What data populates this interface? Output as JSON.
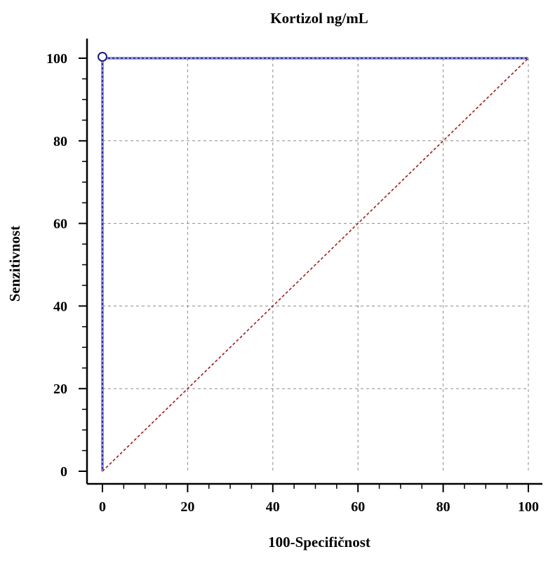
{
  "chart_data": {
    "type": "line",
    "title": "Kortizol ng/mL",
    "xlabel": "100-Specifičnost",
    "ylabel": "Senzitivnost",
    "xlim": [
      0,
      100
    ],
    "ylim": [
      0,
      100
    ],
    "xticks": [
      0,
      20,
      40,
      60,
      80,
      100
    ],
    "yticks": [
      0,
      20,
      40,
      60,
      80,
      100
    ],
    "grid": true,
    "series": [
      {
        "role": "roc-curve",
        "color": "#2f2fa8",
        "x": [
          0,
          0,
          100
        ],
        "y": [
          0,
          100,
          100
        ]
      },
      {
        "role": "reference-diagonal",
        "color": "#a01c1c",
        "x": [
          0,
          100
        ],
        "y": [
          0,
          100
        ]
      }
    ],
    "markers": [
      {
        "x": 0,
        "y": 100
      }
    ]
  }
}
